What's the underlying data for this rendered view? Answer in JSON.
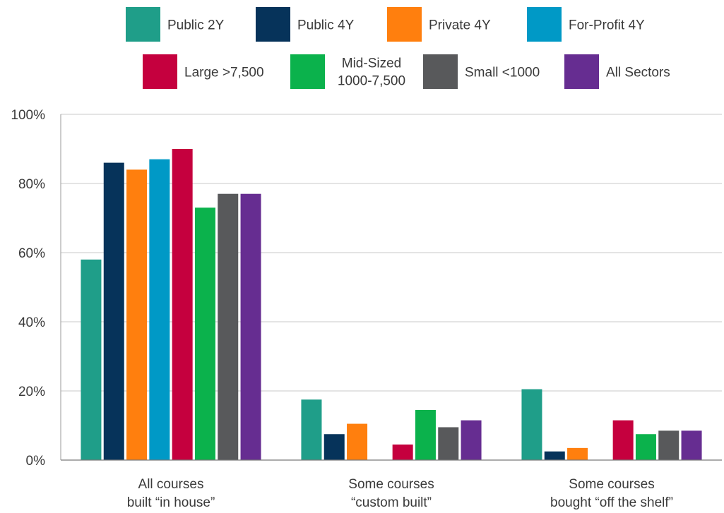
{
  "chart_data": {
    "type": "bar",
    "categories": [
      [
        "All courses",
        "built “in house”"
      ],
      [
        "Some courses",
        "“custom built”"
      ],
      [
        "Some courses",
        "bought “off the shelf”"
      ]
    ],
    "series": [
      {
        "name": "Public 2Y",
        "color": "#1f9e89",
        "values": [
          58,
          17.5,
          20.5
        ]
      },
      {
        "name": "Public 4Y",
        "color": "#06335a",
        "values": [
          86,
          7.5,
          2.5
        ]
      },
      {
        "name": "Private 4Y",
        "color": "#ff7f0e",
        "values": [
          84,
          10.5,
          3.5
        ]
      },
      {
        "name": "For-Profit 4Y",
        "color": "#0099c6",
        "values": [
          87,
          0,
          0
        ]
      },
      {
        "name": "Large >7,500",
        "color": "#c5003e",
        "values": [
          90,
          4.5,
          11.5
        ]
      },
      {
        "name": "Mid-Sized 1000-7,500",
        "color": "#0bb24c",
        "values": [
          73,
          14.5,
          7.5
        ]
      },
      {
        "name": "Small <1000",
        "color": "#58595b",
        "values": [
          77,
          9.5,
          8.5
        ]
      },
      {
        "name": "All Sectors",
        "color": "#662d91",
        "values": [
          77,
          11.5,
          8.5
        ]
      }
    ],
    "yticks": [
      "0%",
      "20%",
      "40%",
      "60%",
      "80%",
      "100%"
    ],
    "ylim": [
      0,
      100
    ],
    "grid": true,
    "legend_position": "top"
  }
}
